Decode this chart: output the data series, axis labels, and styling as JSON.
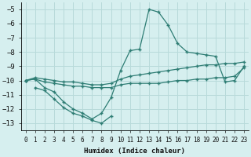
{
  "xlabel": "Humidex (Indice chaleur)",
  "xlim": [
    -0.5,
    23.5
  ],
  "ylim": [
    -13.5,
    -4.5
  ],
  "yticks": [
    -5,
    -6,
    -7,
    -8,
    -9,
    -10,
    -11,
    -12,
    -13
  ],
  "xticks": [
    0,
    1,
    2,
    3,
    4,
    5,
    6,
    7,
    8,
    9,
    10,
    11,
    12,
    13,
    14,
    15,
    16,
    17,
    18,
    19,
    20,
    21,
    22,
    23
  ],
  "bg_color": "#d6efef",
  "line_color": "#2e7d74",
  "grid_color": "#b8dada",
  "curves": [
    {
      "x": [
        1,
        2,
        3,
        4,
        5,
        6,
        7,
        8,
        9
      ],
      "y": [
        -10.5,
        -10.7,
        -11.3,
        -11.9,
        -12.3,
        -12.5,
        -12.8,
        -13.0,
        -12.5
      ]
    },
    {
      "x": [
        0,
        1,
        2,
        3,
        4,
        5,
        6,
        7,
        8,
        9,
        10,
        11,
        12,
        13,
        14,
        15,
        16,
        17,
        18,
        19,
        20,
        21,
        22,
        23
      ],
      "y": [
        -10.0,
        -9.9,
        -10.5,
        -10.8,
        -11.5,
        -12.0,
        -12.3,
        -12.7,
        -12.3,
        -11.2,
        -9.3,
        -7.9,
        -7.8,
        -5.0,
        -5.2,
        -6.1,
        -7.4,
        -8.0,
        -8.1,
        -8.2,
        -8.3,
        -10.1,
        -10.0,
        -9.0
      ]
    },
    {
      "x": [
        0,
        1,
        2,
        3,
        4,
        5,
        6,
        7,
        8,
        9,
        10,
        11,
        12,
        13,
        14,
        15,
        16,
        17,
        18,
        19,
        20,
        21,
        22,
        23
      ],
      "y": [
        -10.0,
        -9.9,
        -10.1,
        -10.2,
        -10.3,
        -10.4,
        -10.4,
        -10.5,
        -10.5,
        -10.5,
        -10.3,
        -10.2,
        -10.2,
        -10.2,
        -10.2,
        -10.1,
        -10.0,
        -10.0,
        -9.9,
        -9.9,
        -9.8,
        -9.8,
        -9.7,
        -9.1
      ]
    },
    {
      "x": [
        0,
        1,
        2,
        3,
        4,
        5,
        6,
        7,
        8,
        9,
        10,
        11,
        12,
        13,
        14,
        15,
        16,
        17,
        18,
        19,
        20,
        21,
        22,
        23
      ],
      "y": [
        -10.0,
        -9.8,
        -9.9,
        -10.0,
        -10.1,
        -10.1,
        -10.2,
        -10.3,
        -10.3,
        -10.2,
        -9.9,
        -9.7,
        -9.6,
        -9.5,
        -9.4,
        -9.3,
        -9.2,
        -9.1,
        -9.0,
        -8.9,
        -8.9,
        -8.8,
        -8.8,
        -8.7
      ]
    }
  ]
}
